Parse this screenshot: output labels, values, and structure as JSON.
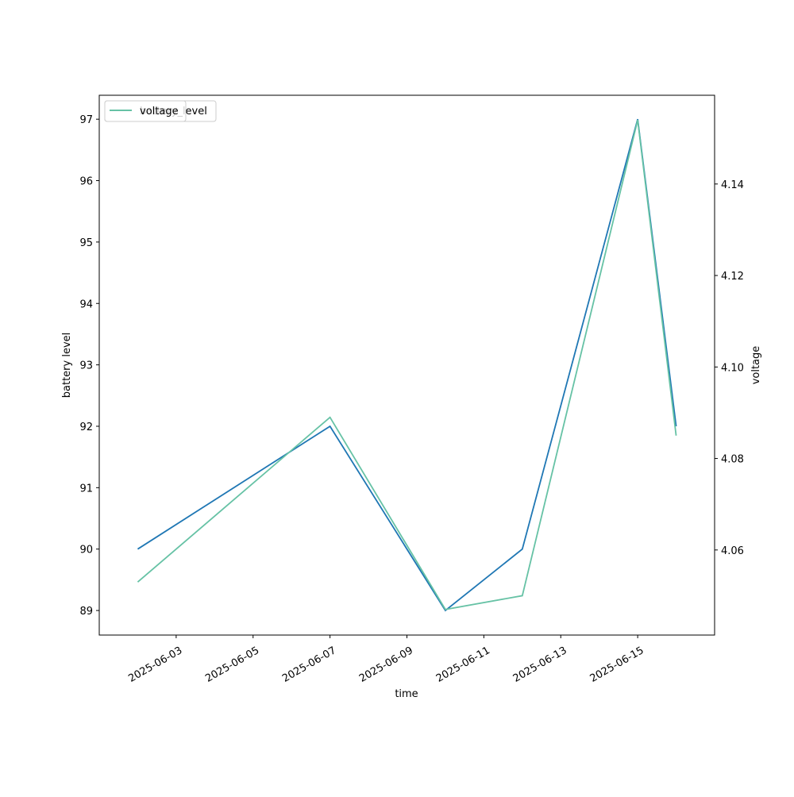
{
  "chart_data": {
    "type": "line",
    "x": [
      "2025-06-02",
      "2025-06-07",
      "2025-06-10",
      "2025-06-12",
      "2025-06-15",
      "2025-06-16"
    ],
    "series": [
      {
        "name": "battery_level",
        "color": "#1f77b4",
        "values": [
          90,
          92,
          89,
          90,
          97,
          92
        ]
      },
      {
        "name": "voltage",
        "color": "#66c2a5",
        "axis": "y2",
        "values": [
          4.053,
          4.089,
          4.047,
          4.05,
          4.154,
          4.085
        ]
      }
    ],
    "xlabel": "time",
    "ylabel": "battery level",
    "y2label": "voltage",
    "xlim": [
      "2025-06-01",
      "2025-06-17"
    ],
    "xticks": [
      "2025-06-03",
      "2025-06-05",
      "2025-06-07",
      "2025-06-09",
      "2025-06-11",
      "2025-06-13",
      "2025-06-15"
    ],
    "ylim": [
      88.6,
      97.39
    ],
    "yticks": [
      89,
      90,
      91,
      92,
      93,
      94,
      95,
      96,
      97
    ],
    "y2lim": [
      4.0414,
      4.1594
    ],
    "y2ticks": [
      4.06,
      4.08,
      {
        "value": 4.1,
        "label": "4.10"
      },
      4.12,
      4.14
    ],
    "legend": "upper left",
    "grid": false
  }
}
